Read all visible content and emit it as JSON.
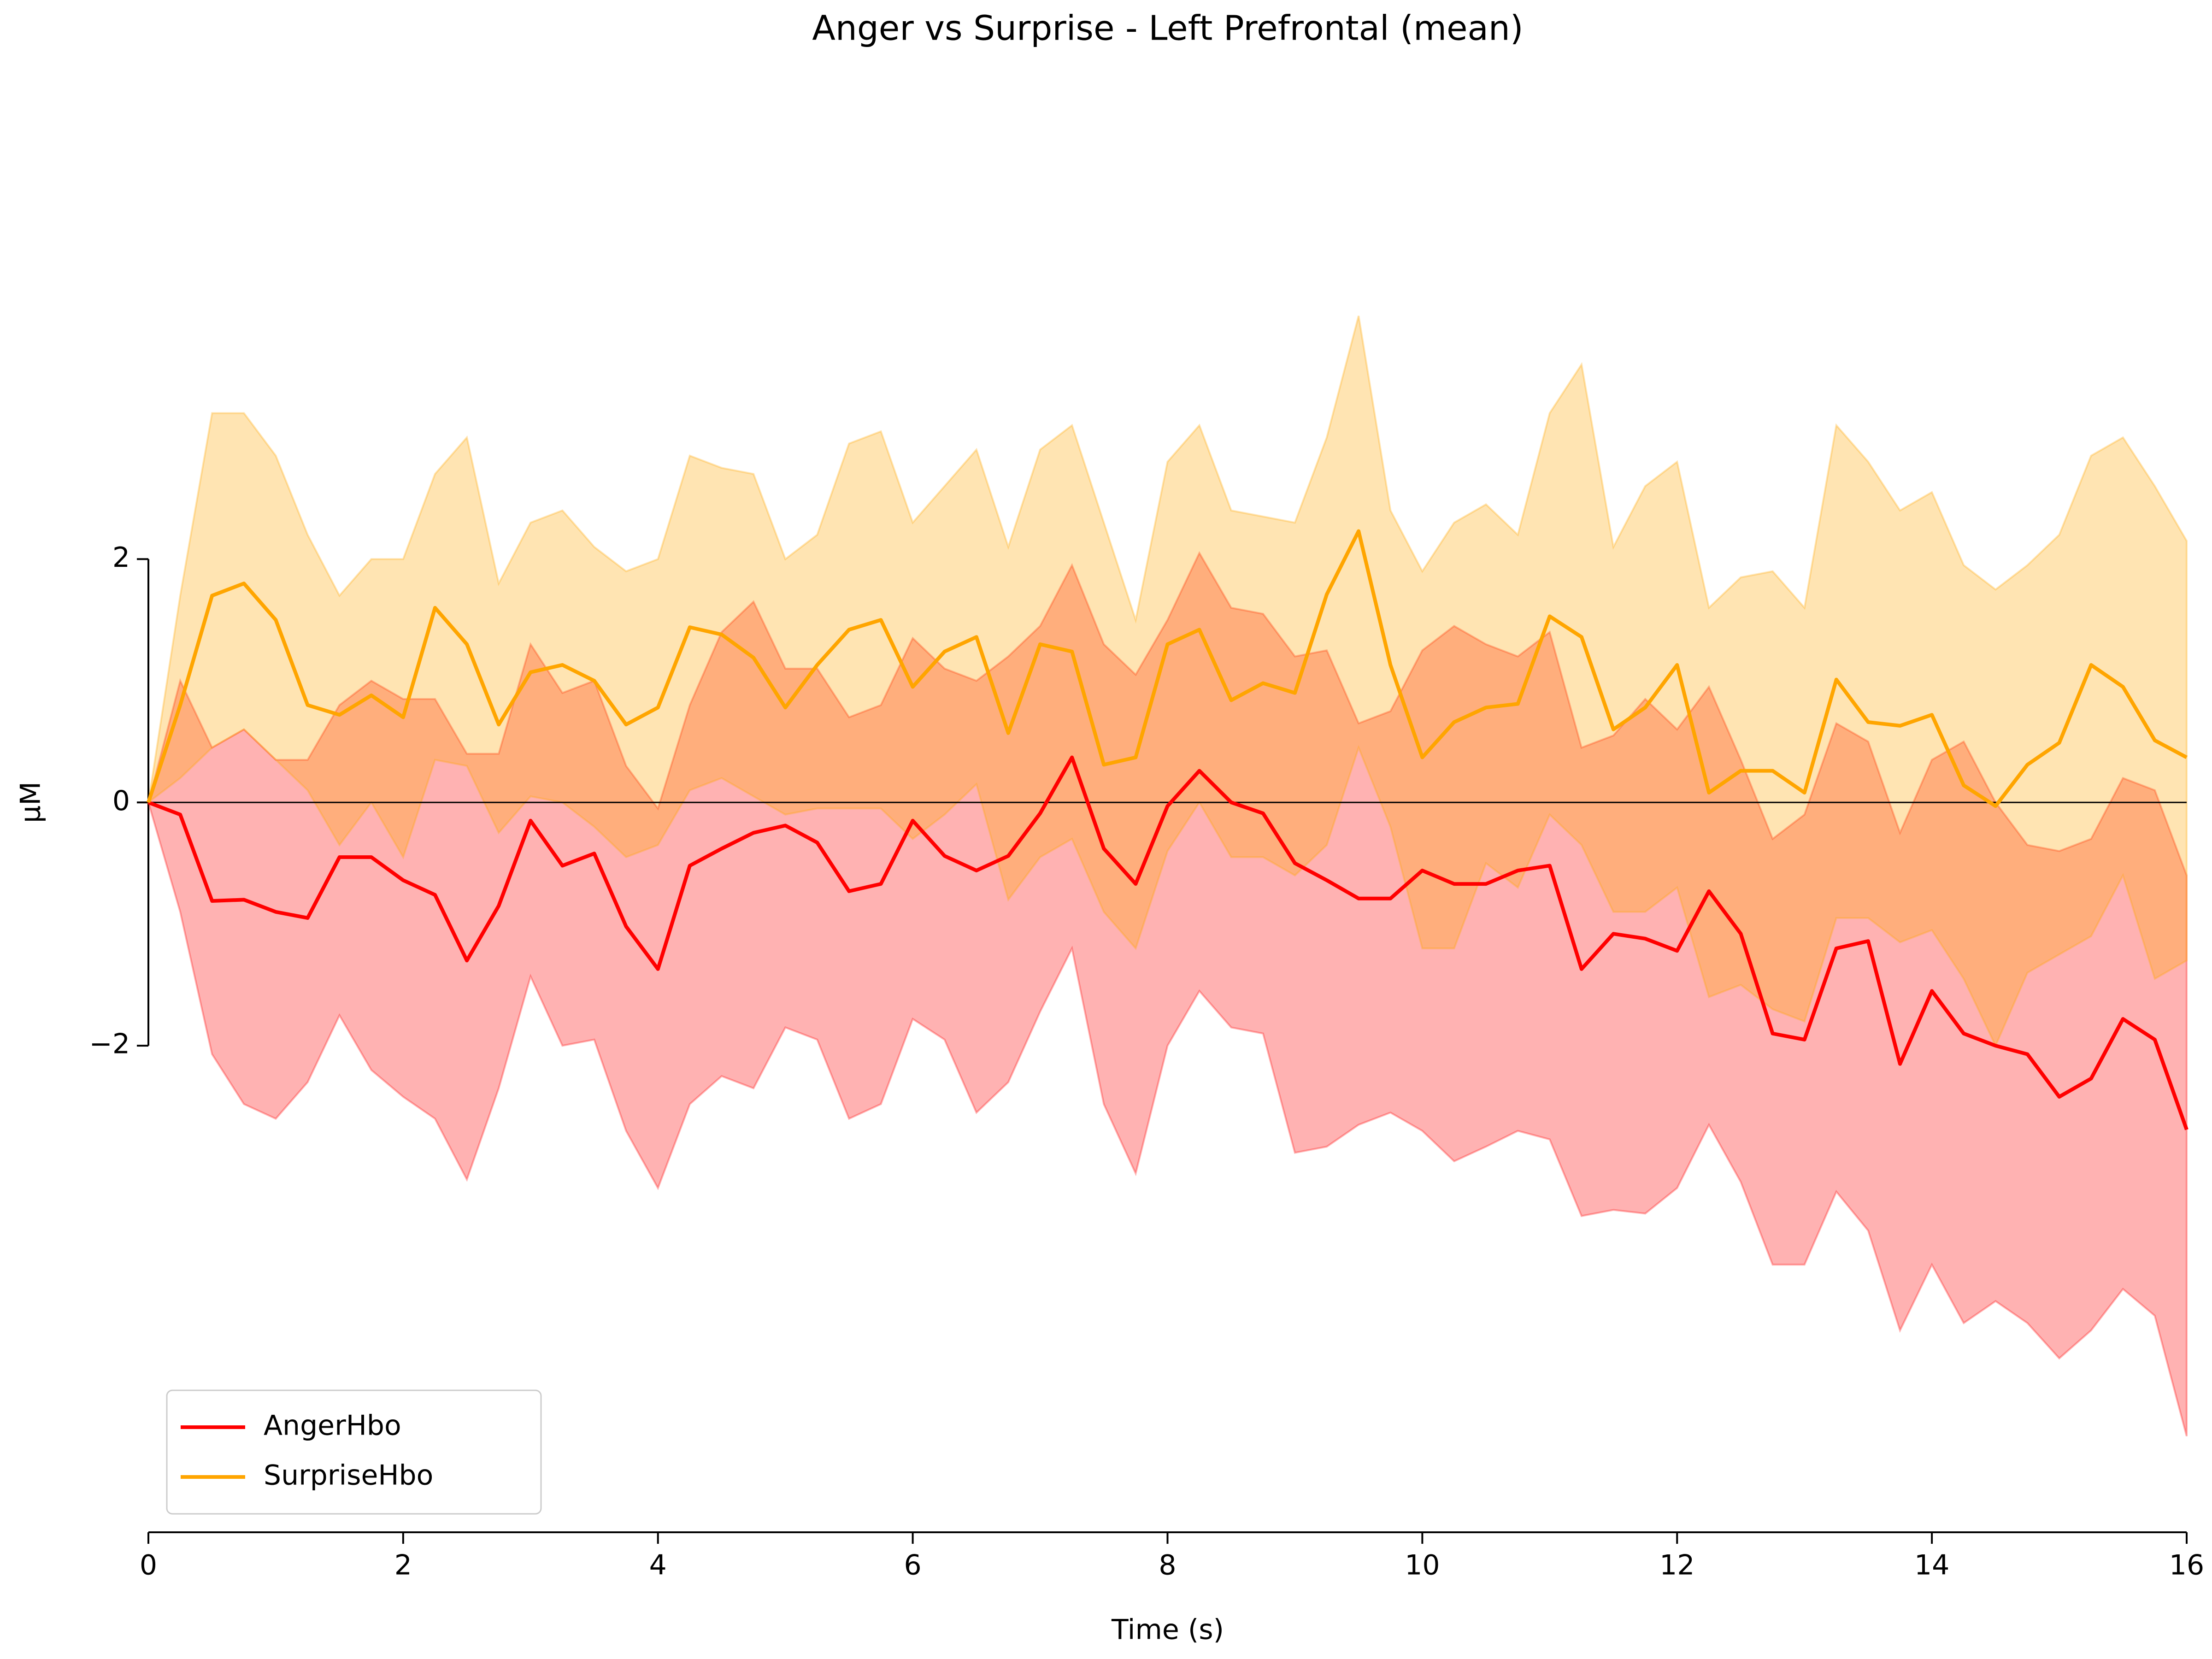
{
  "chart_data": {
    "type": "line",
    "title": "Anger vs Surprise - Left Prefrontal (mean)",
    "xlabel": "Time (s)",
    "ylabel": "µM",
    "x": [
      0,
      0.25,
      0.5,
      0.75,
      1,
      1.25,
      1.5,
      1.75,
      2,
      2.25,
      2.5,
      2.75,
      3,
      3.25,
      3.5,
      3.75,
      4,
      4.25,
      4.5,
      4.75,
      5,
      5.25,
      5.5,
      5.75,
      6,
      6.25,
      6.5,
      6.75,
      7,
      7.25,
      7.5,
      7.75,
      8,
      8.25,
      8.5,
      8.75,
      9,
      9.25,
      9.5,
      9.75,
      10,
      10.25,
      10.5,
      10.75,
      11,
      11.25,
      11.5,
      11.75,
      12,
      12.25,
      12.5,
      12.75,
      13,
      13.25,
      13.5,
      13.75,
      14,
      14.25,
      14.5,
      14.75,
      15,
      15.25,
      15.5,
      15.75,
      16
    ],
    "series": [
      {
        "name": "AngerHbo",
        "color": "#ff0000",
        "values": [
          0,
          -0.1,
          -0.81,
          -0.8,
          -0.9,
          -0.95,
          -0.45,
          -0.45,
          -0.64,
          -0.76,
          -1.3,
          -0.85,
          -0.15,
          -0.52,
          -0.42,
          -1.02,
          -1.37,
          -0.52,
          -0.38,
          -0.25,
          -0.19,
          -0.33,
          -0.73,
          -0.67,
          -0.15,
          -0.44,
          -0.56,
          -0.44,
          -0.09,
          0.37,
          -0.38,
          -0.67,
          -0.03,
          0.26,
          0,
          -0.09,
          -0.5,
          -0.64,
          -0.79,
          -0.79,
          -0.56,
          -0.67,
          -0.67,
          -0.56,
          -0.52,
          -1.37,
          -1.08,
          -1.12,
          -1.22,
          -0.73,
          -1.08,
          -1.9,
          -1.95,
          -1.2,
          -1.14,
          -2.15,
          -1.55,
          -1.9,
          -2,
          -2.07,
          -2.42,
          -2.27,
          -1.78,
          -1.95,
          -2.69
        ],
        "upper": [
          0,
          1,
          0.45,
          0.6,
          0.35,
          0.35,
          0.8,
          1,
          0.85,
          0.85,
          0.4,
          0.4,
          1.3,
          0.9,
          1,
          0.3,
          -0.05,
          0.8,
          1.4,
          1.65,
          1.1,
          1.1,
          0.7,
          0.8,
          1.35,
          1.1,
          1,
          1.2,
          1.45,
          1.95,
          1.3,
          1.05,
          1.5,
          2.05,
          1.6,
          1.55,
          1.2,
          1.25,
          0.65,
          0.75,
          1.25,
          1.45,
          1.3,
          1.2,
          1.4,
          0.45,
          0.55,
          0.85,
          0.6,
          0.95,
          0.35,
          -0.3,
          -0.1,
          0.65,
          0.5,
          -0.25,
          0.35,
          0.5,
          0,
          -0.35,
          -0.4,
          -0.3,
          0.2,
          0.1,
          -0.6
        ],
        "lower": [
          0,
          -0.9,
          -2.07,
          -2.48,
          -2.6,
          -2.3,
          -1.75,
          -2.2,
          -2.42,
          -2.6,
          -3.1,
          -2.35,
          -1.43,
          -2,
          -1.95,
          -2.7,
          -3.17,
          -2.48,
          -2.25,
          -2.35,
          -1.85,
          -1.95,
          -2.6,
          -2.48,
          -1.78,
          -1.95,
          -2.55,
          -2.3,
          -1.72,
          -1.2,
          -2.48,
          -3.05,
          -2,
          -1.55,
          -1.85,
          -1.9,
          -2.88,
          -2.83,
          -2.65,
          -2.55,
          -2.7,
          -2.95,
          -2.83,
          -2.7,
          -2.77,
          -3.4,
          -3.35,
          -3.38,
          -3.17,
          -2.65,
          -3.12,
          -3.8,
          -3.8,
          -3.2,
          -3.52,
          -4.34,
          -3.8,
          -4.28,
          -4.1,
          -4.28,
          -4.57,
          -4.34,
          -4,
          -4.22,
          -5.21
        ]
      },
      {
        "name": "SurpriseHbo",
        "color": "#ffa500",
        "values": [
          0,
          0.8,
          1.7,
          1.8,
          1.5,
          0.8,
          0.72,
          0.88,
          0.7,
          1.6,
          1.3,
          0.64,
          1.07,
          1.13,
          1,
          0.64,
          0.78,
          1.44,
          1.38,
          1.19,
          0.78,
          1.13,
          1.42,
          1.5,
          0.95,
          1.24,
          1.36,
          0.57,
          1.3,
          1.24,
          0.31,
          0.37,
          1.3,
          1.42,
          0.84,
          0.98,
          0.9,
          1.71,
          2.23,
          1.13,
          0.37,
          0.66,
          0.78,
          0.81,
          1.53,
          1.36,
          0.6,
          0.78,
          1.13,
          0.08,
          0.26,
          0.26,
          0.08,
          1.01,
          0.66,
          0.63,
          0.72,
          0.14,
          -0.03,
          0.31,
          0.49,
          1.13,
          0.95,
          0.51,
          0.37
        ],
        "upper": [
          0,
          1.7,
          3.2,
          3.2,
          2.85,
          2.2,
          1.7,
          2,
          2,
          2.7,
          3,
          1.8,
          2.3,
          2.4,
          2.1,
          1.9,
          2,
          2.85,
          2.75,
          2.7,
          2,
          2.2,
          2.95,
          3.05,
          2.3,
          2.6,
          2.9,
          2.1,
          2.9,
          3.1,
          2.3,
          1.5,
          2.8,
          3.1,
          2.4,
          2.35,
          2.3,
          3,
          4,
          2.4,
          1.9,
          2.3,
          2.45,
          2.2,
          3.2,
          3.6,
          2.1,
          2.6,
          2.8,
          1.6,
          1.85,
          1.9,
          1.6,
          3.1,
          2.8,
          2.4,
          2.55,
          1.95,
          1.75,
          1.95,
          2.2,
          2.85,
          3,
          2.6,
          2.15
        ],
        "lower": [
          0,
          0.2,
          0.45,
          0.6,
          0.35,
          0.1,
          -0.35,
          0,
          -0.45,
          0.35,
          0.3,
          -0.25,
          0.05,
          0,
          -0.2,
          -0.45,
          -0.35,
          0.1,
          0.2,
          0.05,
          -0.1,
          -0.05,
          -0.05,
          -0.05,
          -0.3,
          -0.1,
          0.15,
          -0.8,
          -0.45,
          -0.3,
          -0.9,
          -1.2,
          -0.4,
          0,
          -0.45,
          -0.45,
          -0.6,
          -0.35,
          0.45,
          -0.2,
          -1.2,
          -1.2,
          -0.5,
          -0.7,
          -0.1,
          -0.35,
          -0.9,
          -0.9,
          -0.7,
          -1.6,
          -1.5,
          -1.7,
          -1.8,
          -0.95,
          -0.95,
          -1.15,
          -1.05,
          -1.45,
          -2,
          -1.4,
          -1.25,
          -1.1,
          -0.6,
          -1.45,
          -1.3
        ]
      }
    ],
    "xlim": [
      0,
      16
    ],
    "xticks": [
      0,
      2,
      4,
      6,
      8,
      10,
      12,
      14,
      16
    ],
    "ylim": [
      -6,
      5.6
    ],
    "yticks": [
      {
        "value": -2,
        "label": "−2"
      },
      0,
      2
    ],
    "band_opacity": 0.3,
    "legend": "lower left"
  }
}
